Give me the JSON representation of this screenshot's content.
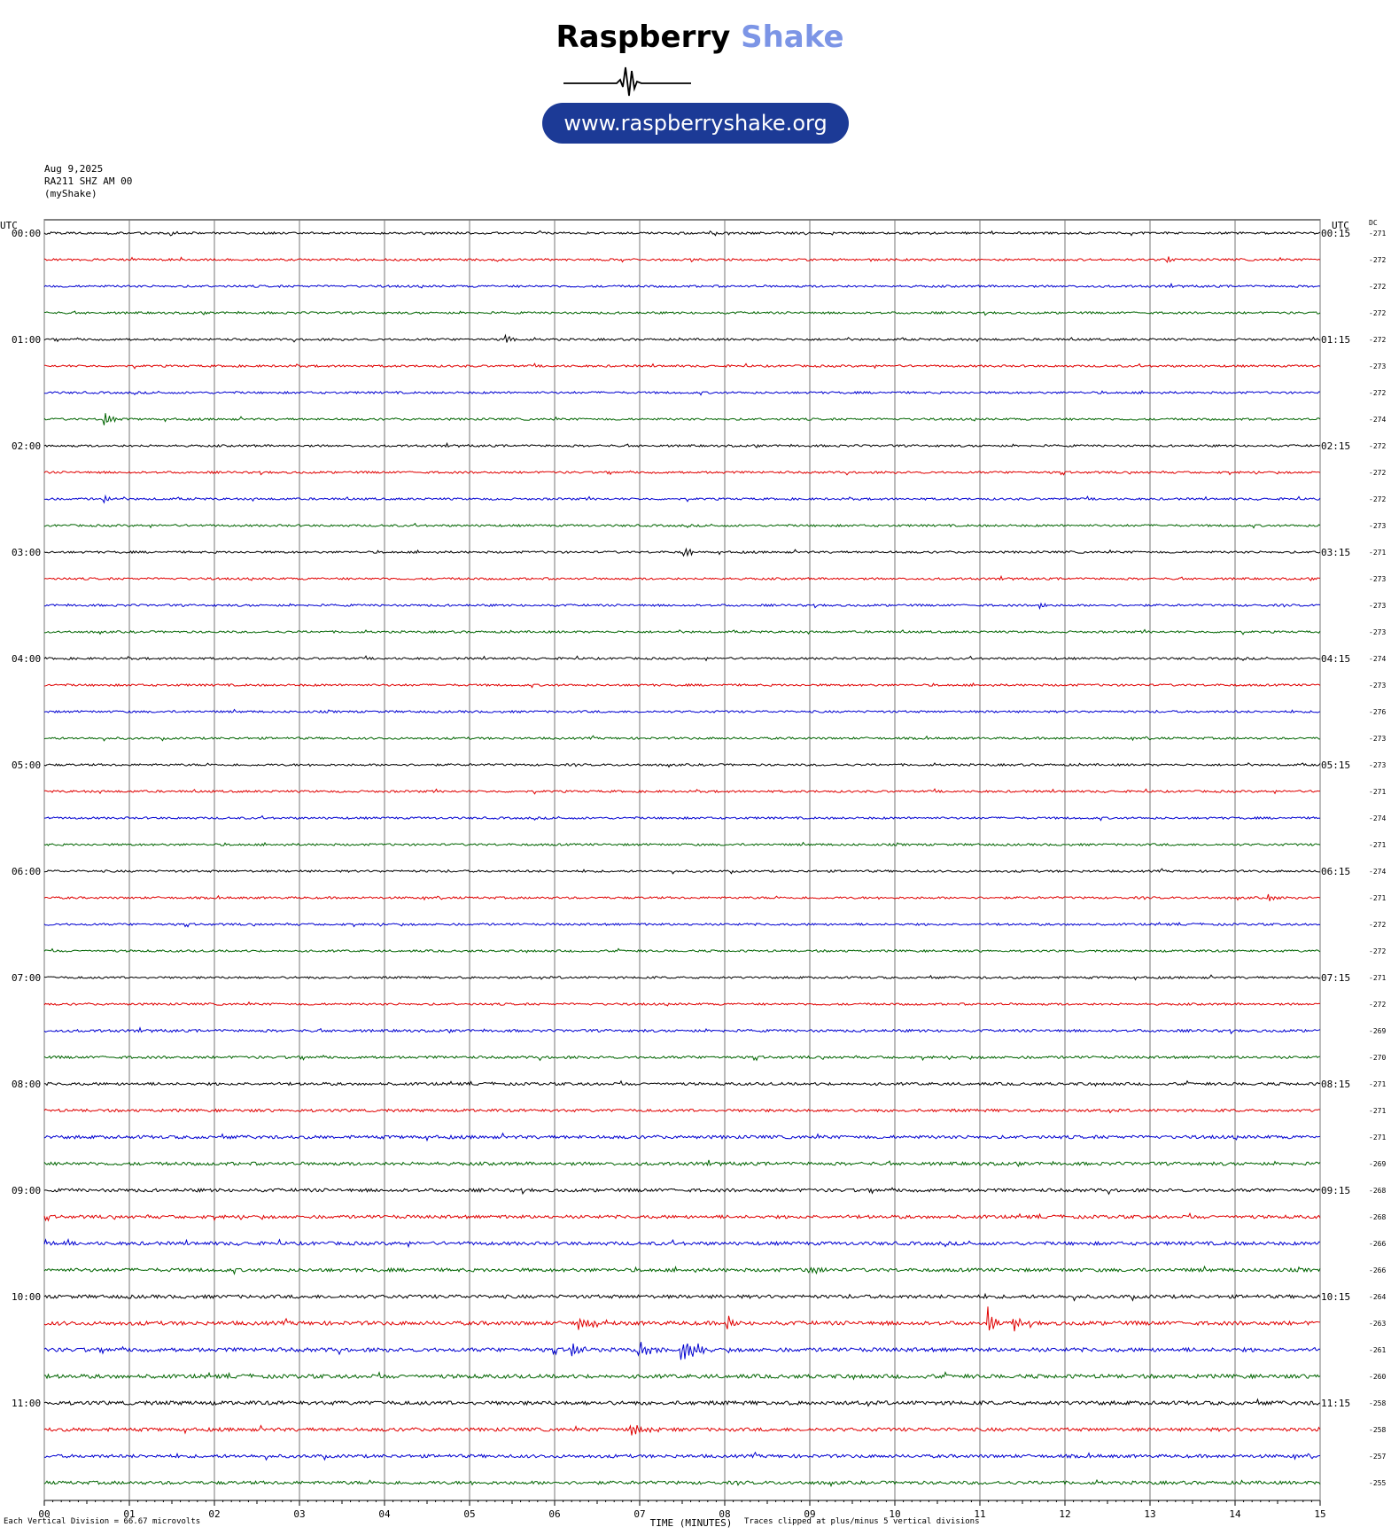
{
  "logo": {
    "brand_first": "Raspberry",
    "brand_second": "Shake",
    "url": "www.raspberryshake.org",
    "brand_color": "#7c95e6",
    "pill_color": "#1c3a96"
  },
  "header": {
    "date": "Aug 9,2025",
    "station": "RA211 SHZ AM 00",
    "network": "(myShake)"
  },
  "labels": {
    "utc_left": "UTC",
    "utc_right": "UTC",
    "dc": "DC",
    "x_axis_title": "TIME (MINUTES)",
    "division_note": "Each Vertical Division =   66.67 microvolts",
    "clip_note": "Traces clipped at plus/minus 5 vertical divisions"
  },
  "chart_data": {
    "type": "line",
    "xlabel": "TIME (MINUTES)",
    "xlim": [
      0,
      15
    ],
    "x_ticks": [
      "00",
      "01",
      "02",
      "03",
      "04",
      "05",
      "06",
      "07",
      "08",
      "09",
      "10",
      "11",
      "12",
      "13",
      "14",
      "15"
    ],
    "row_colors": [
      "#000000",
      "#e00000",
      "#0000d0",
      "#006400"
    ],
    "left_hour_labels": [
      "00:00",
      "01:00",
      "02:00",
      "03:00",
      "04:00",
      "05:00",
      "06:00",
      "07:00",
      "08:00",
      "09:00",
      "10:00",
      "11:00"
    ],
    "right_hour_labels": [
      "00:15",
      "01:15",
      "02:15",
      "03:15",
      "04:15",
      "05:15",
      "06:15",
      "07:15",
      "08:15",
      "09:15",
      "10:15",
      "11:15"
    ],
    "dc_offsets": [
      "-271",
      "-272",
      "-272",
      "-272",
      "-272",
      "-273",
      "-272",
      "-274",
      "-272",
      "-272",
      "-272",
      "-273",
      "-271",
      "-273",
      "-273",
      "-273",
      "-274",
      "-273",
      "-276",
      "-273",
      "-273",
      "-271",
      "-274",
      "-271",
      "-274",
      "-271",
      "-272",
      "-272",
      "-271",
      "-272",
      "-269",
      "-270",
      "-271",
      "-271",
      "-271",
      "-269",
      "-268",
      "-268",
      "-266",
      "-266",
      "-264",
      "-263",
      "-261",
      "-260",
      "-258",
      "-258",
      "-257",
      "-255"
    ],
    "noise_levels": [
      1,
      1,
      1,
      1,
      1,
      1,
      1,
      1,
      1,
      1,
      1,
      1,
      1,
      1,
      1,
      1,
      1,
      1,
      1,
      1,
      1,
      1,
      1,
      1,
      1,
      1,
      1,
      1,
      1,
      1,
      1.2,
      1.2,
      1.3,
      1.3,
      1.5,
      1.5,
      1.5,
      1.5,
      1.6,
      1.6,
      1.6,
      1.8,
      1.8,
      1.8,
      1.8,
      1.6,
      1.5,
      1.5
    ],
    "events": [
      {
        "row": 1,
        "minute": 13.2,
        "amp": 6,
        "dur": 0.15
      },
      {
        "row": 4,
        "minute": 5.43,
        "amp": 8,
        "dur": 0.15
      },
      {
        "row": 7,
        "minute": 0.7,
        "amp": 14,
        "dur": 0.18
      },
      {
        "row": 10,
        "minute": 0.7,
        "amp": 7,
        "dur": 0.15
      },
      {
        "row": 12,
        "minute": 7.53,
        "amp": 8,
        "dur": 0.15
      },
      {
        "row": 14,
        "minute": 11.7,
        "amp": 4,
        "dur": 0.12
      },
      {
        "row": 25,
        "minute": 14.4,
        "amp": 5,
        "dur": 0.15
      },
      {
        "row": 38,
        "minute": 0.0,
        "amp": 5,
        "dur": 0.25
      },
      {
        "row": 39,
        "minute": 9.0,
        "amp": 5,
        "dur": 0.2
      },
      {
        "row": 41,
        "minute": 6.3,
        "amp": 7,
        "dur": 0.5
      },
      {
        "row": 41,
        "minute": 8.05,
        "amp": 10,
        "dur": 0.08
      },
      {
        "row": 41,
        "minute": 11.1,
        "amp": 20,
        "dur": 0.12
      },
      {
        "row": 41,
        "minute": 11.4,
        "amp": 12,
        "dur": 0.15
      },
      {
        "row": 42,
        "minute": 6.2,
        "amp": 9,
        "dur": 0.25
      },
      {
        "row": 42,
        "minute": 7.0,
        "amp": 10,
        "dur": 0.3
      },
      {
        "row": 42,
        "minute": 7.5,
        "amp": 17,
        "dur": 0.35
      },
      {
        "row": 45,
        "minute": 6.9,
        "amp": 6,
        "dur": 0.4
      }
    ]
  }
}
